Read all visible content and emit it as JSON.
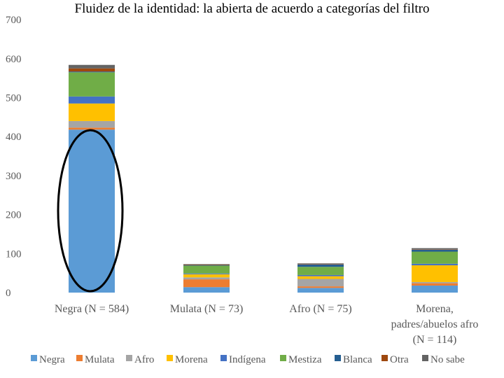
{
  "chart_data": {
    "type": "bar",
    "stacked": true,
    "title": "Fluidez de la identidad: la abierta de acuerdo a categorías del filtro",
    "xlabel": "",
    "ylabel": "",
    "ylim": [
      0,
      700
    ],
    "yticks": [
      0,
      100,
      200,
      300,
      400,
      500,
      600,
      700
    ],
    "grid": false,
    "legend_position": "bottom",
    "categories": [
      [
        "Negra (N = 584)"
      ],
      [
        "Mulata (N = 73)"
      ],
      [
        "Afro (N = 75)"
      ],
      [
        "Morena,",
        "padres/abuelos afro",
        "(N = 114)"
      ]
    ],
    "series": [
      {
        "name": "Negra",
        "color": "#5b9bd5",
        "values": [
          418,
          14,
          12,
          18
        ]
      },
      {
        "name": "Mulata",
        "color": "#ed7d31",
        "values": [
          5,
          20,
          4,
          6
        ]
      },
      {
        "name": "Afro",
        "color": "#a5a5a5",
        "values": [
          17,
          5,
          19,
          3
        ]
      },
      {
        "name": "Morena",
        "color": "#ffc000",
        "values": [
          45,
          8,
          7,
          43
        ]
      },
      {
        "name": "Indígena",
        "color": "#4472c4",
        "values": [
          18,
          2,
          3,
          4
        ]
      },
      {
        "name": "Mestiza",
        "color": "#70ad47",
        "values": [
          62,
          20,
          21,
          31
        ]
      },
      {
        "name": "Blanca",
        "color": "#255e91",
        "values": [
          2,
          1,
          6,
          5
        ]
      },
      {
        "name": "Otra",
        "color": "#9e480e",
        "values": [
          8,
          1,
          1,
          1
        ]
      },
      {
        "name": "No sabe",
        "color": "#636363",
        "values": [
          9,
          2,
          2,
          3
        ]
      }
    ],
    "annotations": [
      {
        "type": "ellipse",
        "category": "Negra (N = 584)",
        "y_range": [
          0,
          420
        ],
        "stroke": "#000000"
      }
    ]
  }
}
